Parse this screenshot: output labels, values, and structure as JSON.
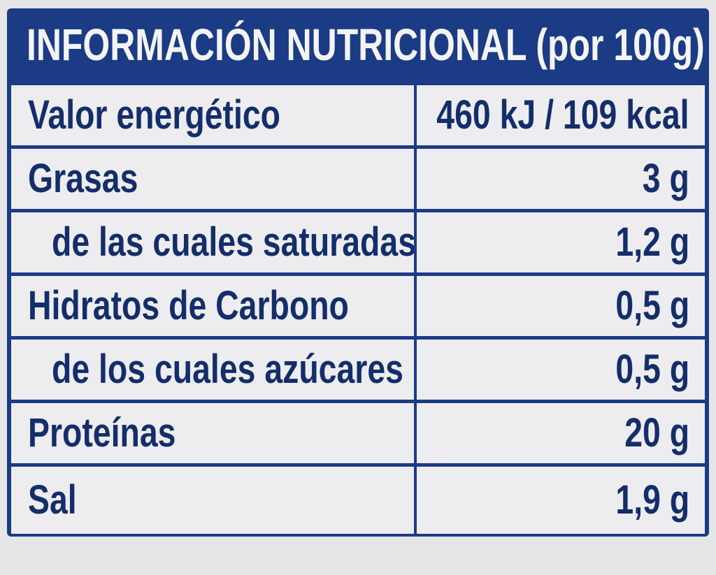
{
  "header": {
    "title": "INFORMACIÓN NUTRICIONAL (por 100g)"
  },
  "table": {
    "rows": [
      [
        "Valor energético",
        "460 kJ / 109 kcal"
      ],
      [
        "Grasas",
        "3 g"
      ],
      [
        "de las cuales saturadas",
        "1,2 g"
      ],
      [
        "Hidratos de Carbono",
        "0,5 g"
      ],
      [
        "de los cuales azúcares",
        "0,5 g"
      ],
      [
        "Proteínas",
        "20 g"
      ],
      [
        "Sal",
        "1,9 g"
      ]
    ]
  }
}
